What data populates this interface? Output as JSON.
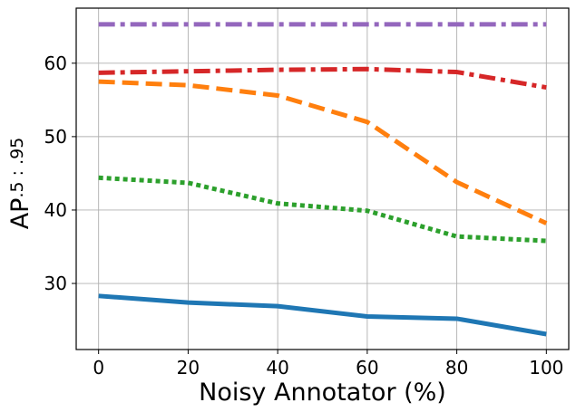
{
  "chart_data": {
    "type": "line",
    "xlabel": "Noisy Annotator (%)",
    "ylabel": {
      "main": "AP",
      "sub": ".5 : .95"
    },
    "x": [
      0,
      20,
      40,
      60,
      80,
      100
    ],
    "xlim": [
      -5,
      105
    ],
    "ylim": [
      21,
      67.5
    ],
    "xticks": [
      0,
      20,
      40,
      60,
      80,
      100
    ],
    "yticks": [
      30,
      40,
      50,
      60
    ],
    "grid": true,
    "series": [
      {
        "values": [
          65.3,
          65.3,
          65.3,
          65.3,
          65.3,
          65.3
        ],
        "color": "#9467bd",
        "style": "dashdot"
      },
      {
        "values": [
          58.7,
          58.9,
          59.1,
          59.2,
          58.8,
          56.7
        ],
        "color": "#d62728",
        "style": "dashdot"
      },
      {
        "values": [
          57.5,
          57.0,
          55.6,
          52.0,
          43.8,
          38.2
        ],
        "color": "#ff7f0e",
        "style": "dashed"
      },
      {
        "values": [
          44.4,
          43.7,
          40.9,
          39.9,
          36.4,
          35.8
        ],
        "color": "#2ca02c",
        "style": "dotted"
      },
      {
        "values": [
          28.3,
          27.4,
          26.9,
          25.5,
          25.2,
          23.1
        ],
        "color": "#1f77b4",
        "style": "solid"
      }
    ]
  }
}
